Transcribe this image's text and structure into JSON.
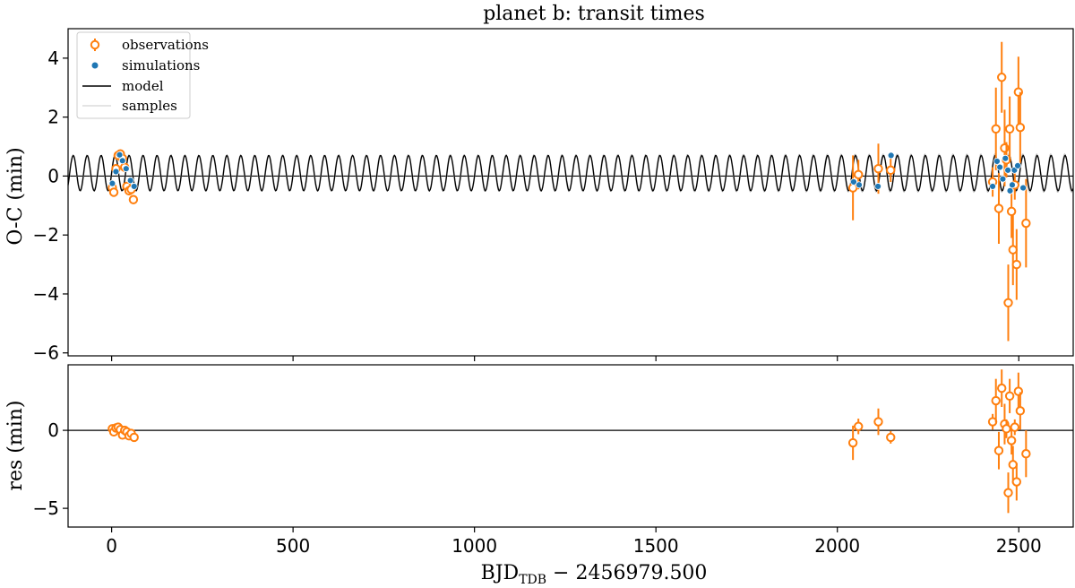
{
  "chart_data": {
    "type": "scatter",
    "title": "planet b: transit times",
    "xlabel_main": "BJD",
    "xlabel_sub": "TDB",
    "xlabel_rest": " − 2456979.500",
    "xlim": [
      -120,
      2650
    ],
    "x_ticks": [
      0,
      500,
      1000,
      1500,
      2000,
      2500
    ],
    "colors": {
      "observations": "#ff7f0e",
      "simulations": "#1f77b4",
      "model": "#000000",
      "samples": "#c8c8c8"
    },
    "legend_position": "top-left",
    "panels": [
      {
        "name": "oc",
        "ylabel": "O-C (min)",
        "ylim": [
          -6.1,
          5.0
        ],
        "y_ticks": [
          -6,
          -4,
          -2,
          0,
          2,
          4
        ],
        "y_tick_labels": [
          "−6",
          "−4",
          "−2",
          "0",
          "2",
          "4"
        ],
        "model": {
          "period_days": 38.5,
          "amplitude_min": 0.6,
          "offset_min": 0.1,
          "x_start": -120,
          "x_end": 2650
        },
        "observations": [
          {
            "x": 2,
            "y": -0.4,
            "err": 0.15
          },
          {
            "x": 6,
            "y": -0.55,
            "err": 0.15
          },
          {
            "x": 12,
            "y": 0.25,
            "err": 0.15
          },
          {
            "x": 18,
            "y": 0.7,
            "err": 0.12
          },
          {
            "x": 24,
            "y": 0.75,
            "err": 0.12
          },
          {
            "x": 30,
            "y": 0.6,
            "err": 0.12
          },
          {
            "x": 36,
            "y": 0.3,
            "err": 0.12
          },
          {
            "x": 42,
            "y": -0.35,
            "err": 0.15
          },
          {
            "x": 48,
            "y": -0.5,
            "err": 0.15
          },
          {
            "x": 54,
            "y": -0.45,
            "err": 0.15
          },
          {
            "x": 60,
            "y": -0.8,
            "err": 0.15
          },
          {
            "x": 2043,
            "y": -0.4,
            "err": 1.1
          },
          {
            "x": 2058,
            "y": 0.05,
            "err": 0.5
          },
          {
            "x": 2113,
            "y": 0.25,
            "err": 0.85
          },
          {
            "x": 2147,
            "y": 0.2,
            "err": 0.4
          },
          {
            "x": 2428,
            "y": -0.2,
            "err": 0.5
          },
          {
            "x": 2437,
            "y": 1.6,
            "err": 1.4
          },
          {
            "x": 2445,
            "y": -1.1,
            "err": 1.2
          },
          {
            "x": 2453,
            "y": 3.35,
            "err": 1.2
          },
          {
            "x": 2461,
            "y": 0.95,
            "err": 1.3
          },
          {
            "x": 2466,
            "y": 0.55,
            "err": 0.6
          },
          {
            "x": 2471,
            "y": -4.3,
            "err": 1.3
          },
          {
            "x": 2475,
            "y": 1.6,
            "err": 1.1
          },
          {
            "x": 2480,
            "y": -1.2,
            "err": 0.9
          },
          {
            "x": 2484,
            "y": -2.5,
            "err": 1.2
          },
          {
            "x": 2489,
            "y": -0.3,
            "err": 0.5
          },
          {
            "x": 2494,
            "y": -3.0,
            "err": 1.2
          },
          {
            "x": 2499,
            "y": 2.85,
            "err": 1.2
          },
          {
            "x": 2504,
            "y": 1.65,
            "err": 1.2
          },
          {
            "x": 2520,
            "y": -1.6,
            "err": 1.5
          }
        ],
        "simulations": [
          {
            "x": 2,
            "y": -0.25
          },
          {
            "x": 12,
            "y": 0.15
          },
          {
            "x": 22,
            "y": 0.72
          },
          {
            "x": 30,
            "y": 0.52
          },
          {
            "x": 40,
            "y": 0.25
          },
          {
            "x": 52,
            "y": -0.15
          },
          {
            "x": 62,
            "y": -0.35
          },
          {
            "x": 2045,
            "y": -0.2
          },
          {
            "x": 2060,
            "y": -0.3
          },
          {
            "x": 2112,
            "y": -0.35
          },
          {
            "x": 2148,
            "y": 0.7
          },
          {
            "x": 2428,
            "y": -0.35
          },
          {
            "x": 2440,
            "y": 0.5
          },
          {
            "x": 2448,
            "y": 0.3
          },
          {
            "x": 2456,
            "y": -0.1
          },
          {
            "x": 2463,
            "y": 0.6
          },
          {
            "x": 2470,
            "y": 0.2
          },
          {
            "x": 2476,
            "y": -0.5
          },
          {
            "x": 2482,
            "y": -0.3
          },
          {
            "x": 2488,
            "y": 0.2
          },
          {
            "x": 2497,
            "y": 0.35
          },
          {
            "x": 2512,
            "y": -0.4
          }
        ]
      },
      {
        "name": "res",
        "ylabel": "res (min)",
        "ylim": [
          -6.2,
          4.2
        ],
        "y_ticks": [
          -5,
          0
        ],
        "y_tick_labels": [
          "−5",
          "0"
        ],
        "residuals": [
          {
            "x": 2,
            "y": 0.1,
            "err": 0.15
          },
          {
            "x": 6,
            "y": -0.1,
            "err": 0.15
          },
          {
            "x": 12,
            "y": 0.15,
            "err": 0.15
          },
          {
            "x": 18,
            "y": 0.2,
            "err": 0.12
          },
          {
            "x": 24,
            "y": 0.05,
            "err": 0.12
          },
          {
            "x": 30,
            "y": -0.3,
            "err": 0.12
          },
          {
            "x": 36,
            "y": 0.0,
            "err": 0.12
          },
          {
            "x": 42,
            "y": -0.1,
            "err": 0.15
          },
          {
            "x": 48,
            "y": -0.35,
            "err": 0.15
          },
          {
            "x": 54,
            "y": -0.2,
            "err": 0.15
          },
          {
            "x": 62,
            "y": -0.45,
            "err": 0.15
          },
          {
            "x": 2043,
            "y": -0.8,
            "err": 1.1
          },
          {
            "x": 2058,
            "y": 0.25,
            "err": 0.5
          },
          {
            "x": 2113,
            "y": 0.55,
            "err": 0.85
          },
          {
            "x": 2147,
            "y": -0.45,
            "err": 0.4
          },
          {
            "x": 2428,
            "y": 0.55,
            "err": 0.5
          },
          {
            "x": 2437,
            "y": 1.9,
            "err": 1.4
          },
          {
            "x": 2445,
            "y": -1.3,
            "err": 1.2
          },
          {
            "x": 2453,
            "y": 2.7,
            "err": 1.2
          },
          {
            "x": 2461,
            "y": 0.4,
            "err": 1.3
          },
          {
            "x": 2466,
            "y": 0.1,
            "err": 0.6
          },
          {
            "x": 2471,
            "y": -4.0,
            "err": 1.3
          },
          {
            "x": 2475,
            "y": 2.2,
            "err": 1.1
          },
          {
            "x": 2480,
            "y": -0.65,
            "err": 0.9
          },
          {
            "x": 2484,
            "y": -2.2,
            "err": 1.2
          },
          {
            "x": 2489,
            "y": 0.2,
            "err": 0.5
          },
          {
            "x": 2494,
            "y": -3.3,
            "err": 1.2
          },
          {
            "x": 2499,
            "y": 2.5,
            "err": 1.2
          },
          {
            "x": 2504,
            "y": 1.25,
            "err": 1.2
          },
          {
            "x": 2520,
            "y": -1.5,
            "err": 1.5
          }
        ]
      }
    ],
    "legend": [
      {
        "label": "observations",
        "kind": "errorbar"
      },
      {
        "label": "simulations",
        "kind": "dot"
      },
      {
        "label": "model",
        "kind": "line"
      },
      {
        "label": "samples",
        "kind": "thinline"
      }
    ]
  }
}
